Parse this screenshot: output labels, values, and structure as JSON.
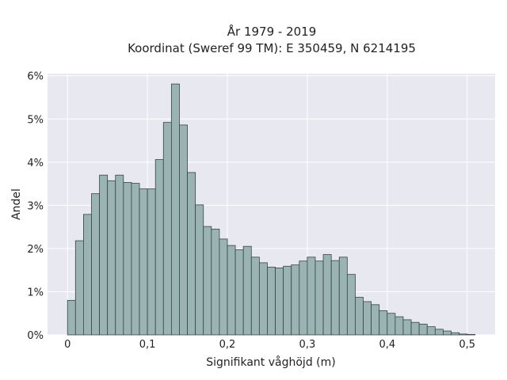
{
  "chart_data": {
    "type": "bar",
    "title_line1": "År 1979 - 2019",
    "title_line2": "Koordinat (Sweref 99 TM): E 350459, N 6214195",
    "xlabel": "Signifikant våghöjd (m)",
    "ylabel": "Andel",
    "xlim": [
      -0.025,
      0.535
    ],
    "ylim": [
      0,
      6.05
    ],
    "x_ticks": [
      {
        "value": 0.0,
        "label": "0"
      },
      {
        "value": 0.1,
        "label": "0,1"
      },
      {
        "value": 0.2,
        "label": "0,2"
      },
      {
        "value": 0.3,
        "label": "0,3"
      },
      {
        "value": 0.4,
        "label": "0,4"
      },
      {
        "value": 0.5,
        "label": "0,5"
      }
    ],
    "y_ticks": [
      {
        "value": 0,
        "label": "0%"
      },
      {
        "value": 1,
        "label": "1%"
      },
      {
        "value": 2,
        "label": "2%"
      },
      {
        "value": 3,
        "label": "3%"
      },
      {
        "value": 4,
        "label": "4%"
      },
      {
        "value": 5,
        "label": "5%"
      },
      {
        "value": 6,
        "label": "6%"
      }
    ],
    "grid": true,
    "bin_width": 0.01,
    "bin_starts": [
      0.0,
      0.01,
      0.02,
      0.03,
      0.04,
      0.05,
      0.06,
      0.07,
      0.08,
      0.09,
      0.1,
      0.11,
      0.12,
      0.13,
      0.14,
      0.15,
      0.16,
      0.17,
      0.18,
      0.19,
      0.2,
      0.21,
      0.22,
      0.23,
      0.24,
      0.25,
      0.26,
      0.27,
      0.28,
      0.29,
      0.3,
      0.31,
      0.32,
      0.33,
      0.34,
      0.35,
      0.36,
      0.37,
      0.38,
      0.39,
      0.4,
      0.41,
      0.42,
      0.43,
      0.44,
      0.45,
      0.46,
      0.47,
      0.48,
      0.49,
      0.5
    ],
    "values": [
      0.8,
      2.18,
      2.79,
      3.27,
      3.7,
      3.57,
      3.7,
      3.53,
      3.51,
      3.38,
      3.38,
      4.06,
      4.92,
      5.81,
      4.86,
      3.76,
      3.01,
      2.51,
      2.45,
      2.22,
      2.07,
      1.97,
      2.05,
      1.8,
      1.67,
      1.57,
      1.55,
      1.59,
      1.62,
      1.71,
      1.8,
      1.71,
      1.86,
      1.72,
      1.8,
      1.4,
      0.87,
      0.77,
      0.7,
      0.56,
      0.5,
      0.42,
      0.35,
      0.29,
      0.25,
      0.19,
      0.13,
      0.09,
      0.05,
      0.02,
      0.01
    ],
    "bar_color": "#9ab3b3",
    "bar_edge_color": "#3a4444",
    "plot_background": "#e8e8f0",
    "grid_color": "#ffffff"
  }
}
